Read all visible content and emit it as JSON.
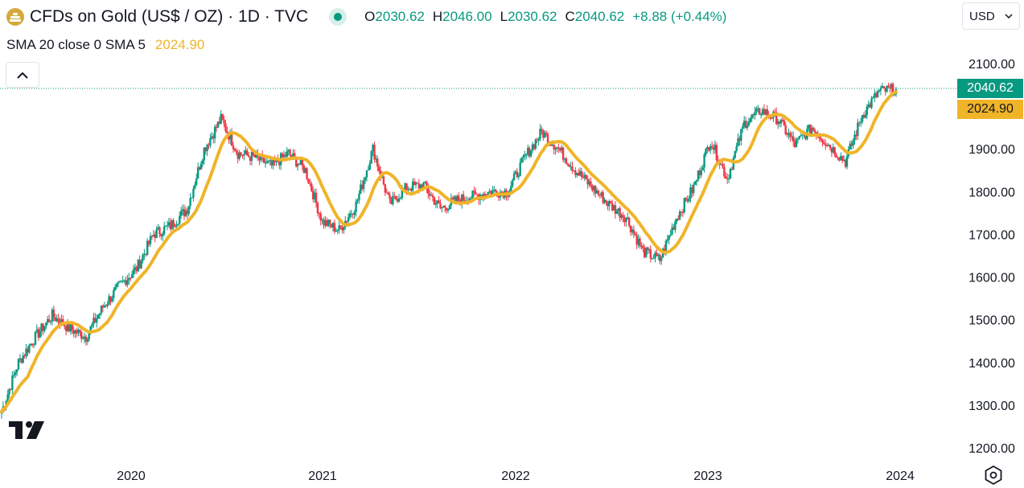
{
  "header": {
    "title": "CFDs on Gold (US$ / OZ) · 1D · TVC",
    "ohlc": [
      {
        "key": "O",
        "value": "2030.62"
      },
      {
        "key": "H",
        "value": "2046.00"
      },
      {
        "key": "L",
        "value": "2030.62"
      },
      {
        "key": "C",
        "value": "2040.62"
      }
    ],
    "change": "+8.88 (+0.44%)"
  },
  "indicator": {
    "label": "SMA 20 close 0 SMA 5",
    "value": "2024.90"
  },
  "currency": {
    "label": "USD"
  },
  "badges": {
    "last_price": "2040.62",
    "sma_value": "2024.90"
  },
  "colors": {
    "up": "#089981",
    "down": "#f23645",
    "sma": "#f0b429",
    "axis_text": "#131722"
  },
  "icons": [
    "gold-bars-logo",
    "live-status-dot",
    "chevron-up-icon",
    "chevron-down-icon",
    "tradingview-logo",
    "settings-icon"
  ],
  "chart_data": {
    "type": "candlestick",
    "x": [
      "2019-07",
      "2019-08",
      "2019-09",
      "2019-10",
      "2019-11",
      "2019-12",
      "2020-01",
      "2020-02",
      "2020-03",
      "2020-04",
      "2020-05",
      "2020-06",
      "2020-07",
      "2020-08",
      "2020-09",
      "2020-10",
      "2020-11",
      "2020-12",
      "2021-01",
      "2021-02",
      "2021-03",
      "2021-04",
      "2021-05",
      "2021-06",
      "2021-07",
      "2021-08",
      "2021-09",
      "2021-10",
      "2021-11",
      "2021-12",
      "2022-01",
      "2022-02",
      "2022-03",
      "2022-04",
      "2022-05",
      "2022-06",
      "2022-07",
      "2022-08",
      "2022-09",
      "2022-10",
      "2022-11",
      "2022-12",
      "2023-01",
      "2023-02",
      "2023-03",
      "2023-04",
      "2023-05",
      "2023-06",
      "2023-07",
      "2023-08",
      "2023-09",
      "2023-10",
      "2023-11",
      "2023-12"
    ],
    "close": [
      1285,
      1400,
      1460,
      1510,
      1480,
      1460,
      1530,
      1580,
      1620,
      1700,
      1720,
      1760,
      1900,
      1970,
      1890,
      1880,
      1860,
      1890,
      1850,
      1730,
      1710,
      1770,
      1900,
      1770,
      1810,
      1815,
      1760,
      1780,
      1790,
      1800,
      1800,
      1880,
      1940,
      1900,
      1850,
      1810,
      1770,
      1740,
      1660,
      1640,
      1740,
      1810,
      1920,
      1830,
      1960,
      1990,
      1970,
      1910,
      1950,
      1910,
      1870,
      1980,
      2035,
      2040
    ],
    "sma_label": "SMA 20 close 0 SMA 5",
    "sma_last": 2024.9,
    "last_price": 2040.62,
    "y_ticks": [
      "1200.00",
      "1300.00",
      "1400.00",
      "1500.00",
      "1600.00",
      "1700.00",
      "1800.00",
      "1900.00",
      "2000.00",
      "2100.00"
    ],
    "x_ticks": [
      "2020",
      "2021",
      "2022",
      "2023",
      "2024"
    ],
    "ylim": [
      1200,
      2100
    ],
    "series": [
      {
        "name": "SMA 20 close 0 SMA 5"
      }
    ],
    "grid": false
  }
}
